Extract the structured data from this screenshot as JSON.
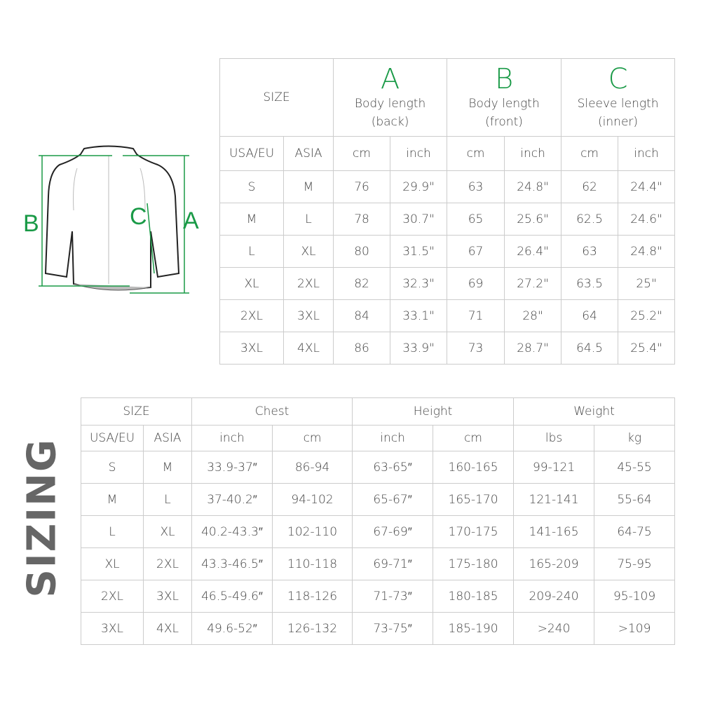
{
  "diagram": {
    "labels": [
      "A",
      "B",
      "C"
    ],
    "accent": "#1a9a47"
  },
  "side_label": "SIZING",
  "table1": {
    "size": "SIZE",
    "groups": [
      {
        "letter": "A",
        "name": "Body length",
        "sub": "(back)"
      },
      {
        "letter": "B",
        "name": "Body length",
        "sub": "(front)"
      },
      {
        "letter": "C",
        "name": "Sleeve length",
        "sub": "(inner)"
      }
    ],
    "subheaders": [
      "USA/EU",
      "ASIA",
      "cm",
      "inch",
      "cm",
      "inch",
      "cm",
      "inch"
    ],
    "rows": [
      [
        "S",
        "M",
        "76",
        "29.9\"",
        "63",
        "24.8\"",
        "62",
        "24.4\""
      ],
      [
        "M",
        "L",
        "78",
        "30.7\"",
        "65",
        "25.6\"",
        "62.5",
        "24.6\""
      ],
      [
        "L",
        "XL",
        "80",
        "31.5\"",
        "67",
        "26.4\"",
        "63",
        "24.8\""
      ],
      [
        "XL",
        "2XL",
        "82",
        "32.3\"",
        "69",
        "27.2\"",
        "63.5",
        "25\""
      ],
      [
        "2XL",
        "3XL",
        "84",
        "33.1\"",
        "71",
        "28\"",
        "64",
        "25.2\""
      ],
      [
        "3XL",
        "4XL",
        "86",
        "33.9\"",
        "73",
        "28.7\"",
        "64.5",
        "25.4\""
      ]
    ]
  },
  "table2": {
    "groups": [
      "SIZE",
      "Chest",
      "Height",
      "Weight"
    ],
    "subheaders": [
      "USA/EU",
      "ASIA",
      "inch",
      "cm",
      "inch",
      "cm",
      "lbs",
      "kg"
    ],
    "rows": [
      [
        "S",
        "M",
        "33.9-37″",
        "86-94",
        "63-65″",
        "160-165",
        "99-121",
        "45-55"
      ],
      [
        "M",
        "L",
        "37-40.2″",
        "94-102",
        "65-67″",
        "165-170",
        "121-141",
        "55-64"
      ],
      [
        "L",
        "XL",
        "40.2-43.3″",
        "102-110",
        "67-69″",
        "170-175",
        "141-165",
        "64-75"
      ],
      [
        "XL",
        "2XL",
        "43.3-46.5″",
        "110-118",
        "69-71″",
        "175-180",
        "165-209",
        "75-95"
      ],
      [
        "2XL",
        "3XL",
        "46.5-49.6″",
        "118-126",
        "71-73″",
        "180-185",
        "209-240",
        "95-109"
      ],
      [
        "3XL",
        "4XL",
        "49.6-52″",
        "126-132",
        "73-75″",
        "185-190",
        ">240",
        ">109"
      ]
    ]
  }
}
